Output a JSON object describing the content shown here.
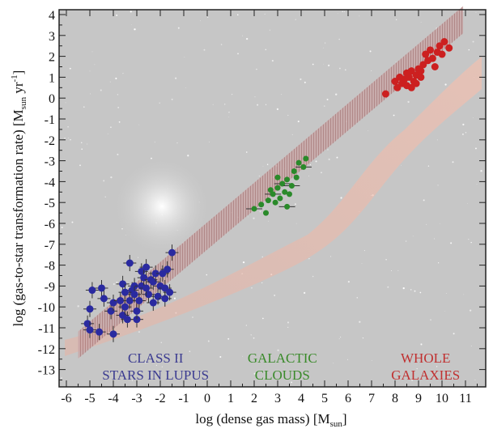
{
  "chart_data": {
    "type": "scatter",
    "xlabel": {
      "main": "log (dense gas mass) [M",
      "sub": "sun",
      "end": "]"
    },
    "ylabel": {
      "main": "log (gas-to-star transformation rate) [M",
      "sub": "sun",
      "mid": " yr",
      "sup": "-1",
      "end": "]"
    },
    "xlim": [
      -6.3,
      11.9
    ],
    "ylim": [
      -13.8,
      4.2
    ],
    "xticks": [
      -6,
      -5,
      -4,
      -3,
      -2,
      -1,
      0,
      1,
      2,
      3,
      4,
      5,
      6,
      7,
      8,
      9,
      10,
      11
    ],
    "yticks": [
      4,
      3,
      2,
      1,
      0,
      -1,
      -2,
      -3,
      -4,
      -5,
      -6,
      -7,
      -8,
      -9,
      -10,
      -11,
      -12,
      -13
    ],
    "band": {
      "x": [
        -5.5,
        10.9
      ],
      "center_slope": 0.95,
      "center_intercept": -6.6,
      "half_width": 0.65,
      "color": "#9a5a5a"
    },
    "groups": [
      {
        "label": [
          "CLASS II",
          "STARS IN LUPUS"
        ],
        "label_at": [
          -2.2,
          -13.2
        ],
        "color": "#2a2aa0",
        "label_color": "#3a3a90",
        "points": [
          [
            -5.1,
            -10.8
          ],
          [
            -5,
            -11.1
          ],
          [
            -4.6,
            -11.2
          ],
          [
            -4,
            -11.3
          ],
          [
            -5,
            -10.1
          ],
          [
            -4.9,
            -9.2
          ],
          [
            -4.5,
            -9.1
          ],
          [
            -4.4,
            -9.6
          ],
          [
            -4.1,
            -10.2
          ],
          [
            -4,
            -9.8
          ],
          [
            -3.7,
            -9.7
          ],
          [
            -3.6,
            -10.4
          ],
          [
            -3.5,
            -10.0
          ],
          [
            -3.4,
            -10.6
          ],
          [
            -3.3,
            -9.7
          ],
          [
            -3.2,
            -9.2
          ],
          [
            -3.1,
            -9.0
          ],
          [
            -3.6,
            -8.9
          ],
          [
            -3.3,
            -7.9
          ],
          [
            -3,
            -10.6
          ],
          [
            -3,
            -10.2
          ],
          [
            -2.9,
            -9.7
          ],
          [
            -2.8,
            -9.0
          ],
          [
            -2.8,
            -8.3
          ],
          [
            -2.7,
            -8.6
          ],
          [
            -2.6,
            -8.1
          ],
          [
            -2.5,
            -9.4
          ],
          [
            -2.4,
            -8.7
          ],
          [
            -2.3,
            -9.8
          ],
          [
            -2.3,
            -8.8
          ],
          [
            -2.2,
            -8.4
          ],
          [
            -2.1,
            -9.5
          ],
          [
            -2,
            -9.0
          ],
          [
            -1.9,
            -8.4
          ],
          [
            -1.8,
            -9.6
          ],
          [
            -1.8,
            -9.1
          ],
          [
            -1.7,
            -8.2
          ],
          [
            -1.6,
            -9.3
          ],
          [
            -1.5,
            -7.4
          ],
          [
            -3.1,
            -9.4
          ],
          [
            -2.6,
            -9.1
          ],
          [
            -3.5,
            -9.3
          ]
        ]
      },
      {
        "label": [
          "GALACTIC",
          "CLOUDS"
        ],
        "label_at": [
          3.2,
          -13.2
        ],
        "color": "#2a8a2a",
        "label_color": "#3a8a2a",
        "points": [
          [
            2,
            -5.3
          ],
          [
            2.3,
            -5.1
          ],
          [
            2.5,
            -5.5
          ],
          [
            2.6,
            -4.9
          ],
          [
            2.8,
            -4.6
          ],
          [
            2.9,
            -5.0
          ],
          [
            3,
            -4.3
          ],
          [
            3.1,
            -4.8
          ],
          [
            3.2,
            -4.1
          ],
          [
            3.3,
            -4.5
          ],
          [
            3.4,
            -3.9
          ],
          [
            3.5,
            -4.6
          ],
          [
            3.6,
            -4.2
          ],
          [
            3.7,
            -3.5
          ],
          [
            3.8,
            -3.8
          ],
          [
            3.9,
            -3.1
          ],
          [
            4.1,
            -3.3
          ],
          [
            4.2,
            -2.9
          ],
          [
            3,
            -3.8
          ],
          [
            2.7,
            -4.4
          ],
          [
            3.4,
            -5.2
          ]
        ]
      },
      {
        "label": [
          "WHOLE",
          "GALAXIES"
        ],
        "label_at": [
          9.3,
          -13.2
        ],
        "color": "#cc2020",
        "label_color": "#c03030",
        "points": [
          [
            7.6,
            0.2
          ],
          [
            8,
            0.8
          ],
          [
            8.1,
            0.5
          ],
          [
            8.2,
            1.0
          ],
          [
            8.3,
            0.7
          ],
          [
            8.4,
            0.9
          ],
          [
            8.5,
            1.2
          ],
          [
            8.5,
            0.6
          ],
          [
            8.6,
            1.0
          ],
          [
            8.7,
            1.3
          ],
          [
            8.8,
            0.8
          ],
          [
            8.9,
            1.1
          ],
          [
            9,
            1.4
          ],
          [
            9.1,
            1.0
          ],
          [
            9.2,
            1.6
          ],
          [
            9.3,
            2.1
          ],
          [
            9.4,
            1.8
          ],
          [
            9.5,
            2.3
          ],
          [
            9.6,
            1.9
          ],
          [
            9.7,
            1.5
          ],
          [
            9.8,
            2.2
          ],
          [
            9.9,
            2.5
          ],
          [
            10,
            2.1
          ],
          [
            10.1,
            2.7
          ],
          [
            10.3,
            2.4
          ],
          [
            8.9,
            0.7
          ],
          [
            9.1,
            1.3
          ],
          [
            8.7,
            0.5
          ]
        ]
      }
    ]
  }
}
